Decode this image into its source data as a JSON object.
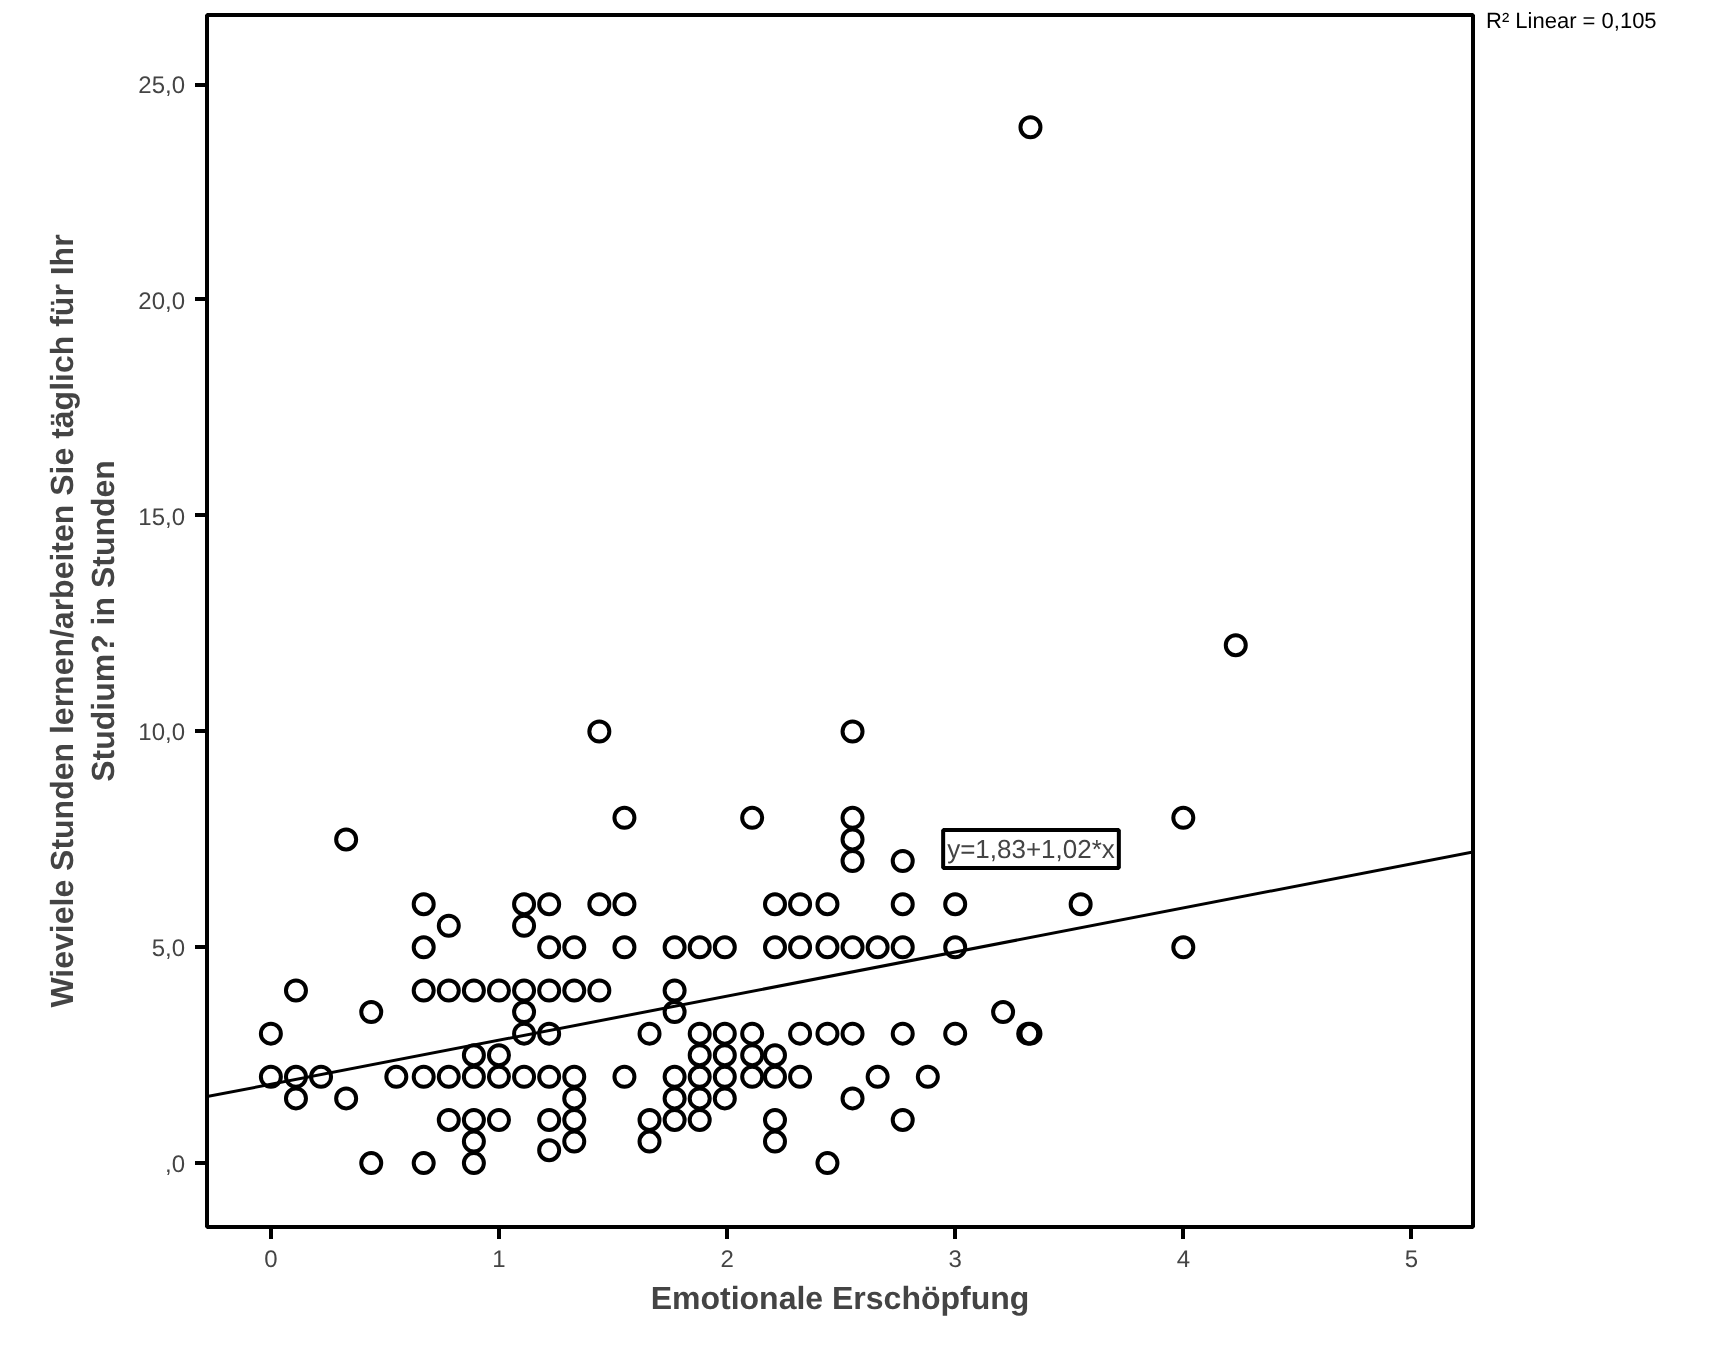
{
  "chart_data": {
    "type": "scatter",
    "xlabel": "Emotionale Erschöpfung",
    "ylabel": "Wieviele Stunden lernen/arbeiten Sie täglich für Ihr\nStudium? in Stunden",
    "xlim": [
      -0.28,
      5.27
    ],
    "ylim": [
      -1.48,
      26.6
    ],
    "xticks": [
      0,
      1,
      2,
      3,
      4,
      5
    ],
    "yticks": [
      {
        "value": 0,
        "label": ",0"
      },
      {
        "value": 5,
        "label": "5,0"
      },
      {
        "value": 10,
        "label": "10,0"
      },
      {
        "value": 15,
        "label": "15,0"
      },
      {
        "value": 20,
        "label": "20,0"
      },
      {
        "value": 25,
        "label": "25,0"
      }
    ],
    "grid": false,
    "series": [
      {
        "color": "#000000",
        "marker": "circle",
        "x": [
          1.44,
          1.55,
          0.33,
          0.67,
          1.11,
          1.22,
          1.44,
          1.55,
          0.78,
          1.11,
          0.67,
          1.22,
          1.33,
          1.55,
          0.11,
          0.67,
          0.78,
          0.89,
          1.0,
          1.11,
          1.22,
          1.33,
          1.44,
          1.11,
          0.44,
          0.0,
          1.11,
          1.22,
          0.89,
          1.0,
          0.0,
          0.11,
          0.22,
          0.55,
          0.67,
          0.78,
          0.89,
          1.0,
          1.11,
          1.22,
          1.33,
          1.55,
          0.11,
          0.33,
          1.33,
          0.78,
          0.89,
          1.0,
          1.22,
          1.33,
          0.89,
          1.33,
          1.22,
          0.44,
          0.67,
          0.89,
          2.55,
          2.11,
          2.55,
          2.55,
          2.55,
          2.77,
          2.21,
          2.32,
          2.44,
          2.77,
          3.0,
          1.77,
          1.88,
          1.99,
          2.21,
          2.32,
          2.44,
          2.55,
          2.66,
          2.77,
          3.0,
          1.77,
          1.77,
          1.66,
          1.88,
          1.99,
          2.11,
          2.32,
          2.44,
          2.55,
          2.77,
          3.0,
          3.21,
          3.32,
          1.88,
          1.99,
          2.11,
          2.21,
          1.77,
          1.88,
          1.99,
          2.11,
          2.21,
          2.32,
          2.66,
          2.88,
          1.77,
          1.88,
          1.99,
          2.55,
          1.66,
          1.66,
          1.77,
          1.88,
          2.21,
          2.21,
          2.77,
          2.44,
          3.33,
          4.23,
          4.0,
          3.55,
          4.0,
          3.33
        ],
        "values": [
          10,
          8,
          7.5,
          6,
          6,
          6,
          6,
          6,
          5.5,
          5.5,
          5,
          5,
          5,
          5,
          4,
          4,
          4,
          4,
          4,
          4,
          4,
          4,
          4,
          3.5,
          3.5,
          3,
          3,
          3,
          2.5,
          2.5,
          2,
          2,
          2,
          2,
          2,
          2,
          2,
          2,
          2,
          2,
          2,
          2,
          1.5,
          1.5,
          1.5,
          1,
          1,
          1,
          1,
          1,
          0.5,
          0.5,
          0.3,
          0,
          0,
          0,
          10,
          8,
          8,
          7.5,
          7,
          7,
          6,
          6,
          6,
          6,
          6,
          5,
          5,
          5,
          5,
          5,
          5,
          5,
          5,
          5,
          5,
          4,
          3.5,
          3,
          3,
          3,
          3,
          3,
          3,
          3,
          3,
          3,
          3.5,
          3,
          2.5,
          2.5,
          2.5,
          2.5,
          2,
          2,
          2,
          2,
          2,
          2,
          2,
          2,
          1.5,
          1.5,
          1.5,
          1.5,
          1,
          0.5,
          1,
          1,
          1,
          0.5,
          1,
          0,
          24,
          12,
          8,
          6,
          5,
          3
        ]
      },
      {
        "type": "line",
        "color": "#000000",
        "x": [
          -0.28,
          5.27
        ],
        "values": [
          1.54,
          7.21
        ]
      }
    ],
    "annotations": [
      "y=1,83+1,02*x",
      "R² Linear = 0,105"
    ]
  }
}
